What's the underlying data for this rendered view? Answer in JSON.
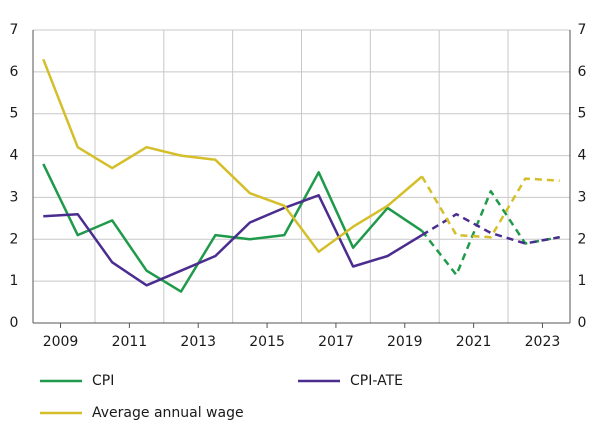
{
  "chart_data": {
    "type": "line",
    "x": [
      2008.5,
      2009.5,
      2010.5,
      2011.5,
      2012.5,
      2013.5,
      2014.5,
      2015.5,
      2016.5,
      2017.5,
      2018.5,
      2019.5,
      2020.5,
      2021.5,
      2022.5,
      2023.5
    ],
    "xlim": [
      2008.2,
      2023.8
    ],
    "xticks": [
      2009,
      2011,
      2013,
      2015,
      2017,
      2019,
      2021,
      2023
    ],
    "xgridlines": [
      2010,
      2012,
      2014,
      2016,
      2018,
      2020,
      2022
    ],
    "ylim": [
      0,
      7
    ],
    "yticks": [
      0,
      1,
      2,
      3,
      4,
      5,
      6,
      7
    ],
    "y2lim": [
      0,
      7
    ],
    "y2ticks": [
      0,
      1,
      2,
      3,
      4,
      5,
      6,
      7
    ],
    "grid": true,
    "legend": "bottom",
    "projection_start": 2019.5,
    "series": [
      {
        "name": "CPI",
        "color": "#1f9a4a",
        "values": [
          3.8,
          2.1,
          2.45,
          1.25,
          0.75,
          2.1,
          2.0,
          2.1,
          3.6,
          1.8,
          2.75,
          2.2,
          1.15,
          3.15,
          1.9,
          2.05
        ]
      },
      {
        "name": "CPI-ATE",
        "color": "#4b2c8f",
        "values": [
          2.55,
          2.6,
          1.45,
          0.9,
          1.25,
          1.6,
          2.4,
          2.75,
          3.05,
          1.35,
          1.6,
          2.1,
          2.6,
          2.15,
          1.9,
          2.05
        ]
      },
      {
        "name": "Average annual wage",
        "color": "#d4bf2a",
        "values": [
          6.3,
          4.2,
          3.7,
          4.2,
          4.0,
          3.9,
          3.1,
          2.8,
          1.7,
          2.3,
          2.8,
          3.5,
          2.1,
          2.05,
          3.45,
          3.4
        ]
      }
    ]
  }
}
